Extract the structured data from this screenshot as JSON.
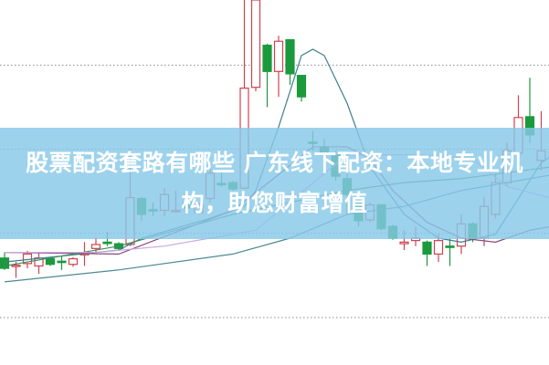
{
  "title": {
    "line1": "股票配资套路有哪些 广东线下配资：本地专业机",
    "line2": "构，助您财富增值"
  },
  "colors": {
    "up": "#d0424f",
    "down": "#1a9a3c",
    "banner": "#87c8e8",
    "grid": "#8a8a9a"
  },
  "chart_data": {
    "type": "candlestick",
    "title": "",
    "xlabel": "",
    "ylabel": "",
    "ylim": [
      0,
      400
    ],
    "grid": true,
    "grid_values": [
      318,
      212,
      106,
      0
    ],
    "candles": [
      [
        75,
        62,
        82,
        60
      ],
      [
        65,
        66,
        70,
        50
      ],
      [
        68,
        80,
        84,
        62
      ],
      [
        65,
        75,
        82,
        55
      ],
      [
        74,
        67,
        76,
        65
      ],
      [
        71,
        70,
        78,
        60
      ],
      [
        67,
        74,
        76,
        64
      ],
      [
        79,
        81,
        95,
        65
      ],
      [
        87,
        92,
        101,
        82
      ],
      [
        95,
        94,
        108,
        90
      ],
      [
        93,
        87,
        95,
        85
      ],
      [
        92,
        151,
        212,
        90
      ],
      [
        150,
        130,
        152,
        122
      ],
      [
        136,
        135,
        145,
        128
      ],
      [
        135,
        155,
        163,
        128
      ],
      [
        134,
        135,
        160,
        132
      ],
      [
        145,
        138,
        147,
        135
      ],
      [
        132,
        142,
        144,
        130
      ],
      [
        150,
        182,
        190,
        145
      ],
      [
        169,
        168,
        185,
        165
      ],
      [
        170,
        162,
        172,
        160
      ],
      [
        163,
        289,
        400,
        163
      ],
      [
        290,
        400,
        400,
        285
      ],
      [
        343,
        310,
        345,
        265
      ],
      [
        310,
        348,
        355,
        278
      ],
      [
        350,
        307,
        350,
        293
      ],
      [
        305,
        278,
        305,
        272
      ],
      [
        221,
        220,
        235,
        210
      ],
      [
        215,
        205,
        225,
        195
      ],
      [
        205,
        178,
        210,
        172
      ],
      [
        175,
        155,
        190,
        130
      ],
      [
        145,
        122,
        160,
        115
      ],
      [
        123,
        142,
        145,
        120
      ],
      [
        142,
        112,
        142,
        110
      ],
      [
        115,
        100,
        117,
        98
      ],
      [
        93,
        95,
        110,
        85
      ],
      [
        97,
        100,
        115,
        90
      ],
      [
        95,
        80,
        97,
        65
      ],
      [
        80,
        97,
        105,
        70
      ],
      [
        90,
        89,
        100,
        65
      ],
      [
        90,
        118,
        130,
        80
      ],
      [
        118,
        100,
        120,
        95
      ],
      [
        100,
        140,
        152,
        90
      ],
      [
        130,
        170,
        180,
        125
      ],
      [
        170,
        210,
        220,
        165
      ],
      [
        207,
        252,
        280,
        205
      ],
      [
        253,
        230,
        302,
        220
      ],
      [
        198,
        210,
        260,
        185
      ]
    ],
    "moving_averages": [
      {
        "color": "#3d7f8c",
        "points": [
          [
            0,
            70
          ],
          [
            10,
            85
          ],
          [
            12,
            100
          ],
          [
            18,
            125
          ],
          [
            21,
            140
          ],
          [
            22,
            160
          ],
          [
            24,
            240
          ],
          [
            26,
            330
          ],
          [
            27,
            338
          ],
          [
            28,
            330
          ],
          [
            30,
            270
          ],
          [
            32,
            190
          ],
          [
            35,
            130
          ],
          [
            38,
            100
          ],
          [
            40,
            95
          ],
          [
            43,
            105
          ],
          [
            45,
            150
          ],
          [
            47,
            195
          ],
          [
            48,
            205
          ]
        ]
      },
      {
        "color": "#8a4a7a",
        "points": [
          [
            0,
            82
          ],
          [
            10,
            80
          ],
          [
            20,
            135
          ],
          [
            24,
            180
          ],
          [
            27,
            215
          ],
          [
            30,
            215
          ],
          [
            32,
            200
          ],
          [
            34,
            160
          ],
          [
            37,
            120
          ],
          [
            40,
            100
          ],
          [
            43,
            95
          ],
          [
            46,
            110
          ],
          [
            48,
            115
          ]
        ]
      },
      {
        "color": "#3b8a5c",
        "points": [
          [
            0,
            65
          ],
          [
            10,
            90
          ],
          [
            20,
            130
          ],
          [
            30,
            160
          ],
          [
            35,
            170
          ],
          [
            40,
            175
          ],
          [
            48,
            190
          ]
        ]
      },
      {
        "color": "#4a8a90",
        "points": [
          [
            0,
            45
          ],
          [
            10,
            60
          ],
          [
            20,
            80
          ],
          [
            25,
            100
          ],
          [
            30,
            130
          ],
          [
            35,
            140
          ],
          [
            40,
            160
          ],
          [
            48,
            180
          ]
        ]
      },
      {
        "color": "#c9a8e0",
        "points": [
          [
            0,
            82
          ],
          [
            8,
            82
          ],
          [
            14,
            90
          ],
          [
            22,
            110
          ],
          [
            30,
            205
          ],
          [
            36,
            205
          ],
          [
            41,
            200
          ],
          [
            44,
            165
          ],
          [
            48,
            150
          ]
        ]
      }
    ]
  }
}
